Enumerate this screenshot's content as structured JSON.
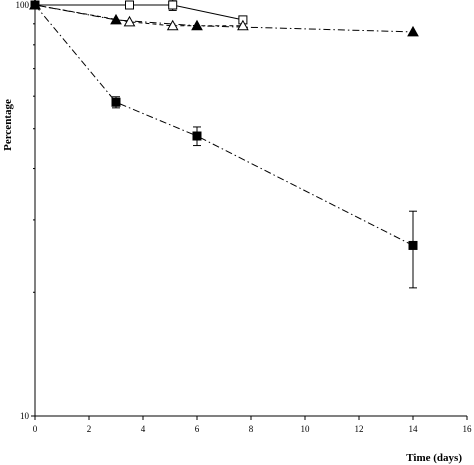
{
  "chart_data": {
    "type": "line",
    "title": "",
    "xlabel": "Time (days)",
    "ylabel": "Percentage",
    "xlim": [
      0,
      16
    ],
    "ylim": [
      10,
      100
    ],
    "y_scale": "log",
    "x_ticks": [
      0,
      2,
      4,
      6,
      8,
      10,
      12,
      14,
      16
    ],
    "y_ticks": [
      10,
      100
    ],
    "grid": false,
    "legend": "none",
    "series": [
      {
        "marker": "open-square",
        "line": "solid",
        "color": "#000000",
        "points": [
          {
            "x": 0,
            "y": 100
          },
          {
            "x": 3.5,
            "y": 100,
            "err": 0
          },
          {
            "x": 5.1,
            "y": 100,
            "err": 3
          },
          {
            "x": 7.7,
            "y": 92
          }
        ]
      },
      {
        "marker": "filled-triangle",
        "line": "dash-dot",
        "color": "#000000",
        "points": [
          {
            "x": 0,
            "y": 100
          },
          {
            "x": 3.0,
            "y": 92
          },
          {
            "x": 6.0,
            "y": 89
          },
          {
            "x": 14.0,
            "y": 86
          }
        ]
      },
      {
        "marker": "open-triangle",
        "line": "dashed",
        "color": "#000000",
        "points": [
          {
            "x": 0,
            "y": 100
          },
          {
            "x": 3.5,
            "y": 91
          },
          {
            "x": 5.1,
            "y": 89
          },
          {
            "x": 7.7,
            "y": 89
          }
        ]
      },
      {
        "marker": "filled-square",
        "line": "dash-dot",
        "color": "#000000",
        "points": [
          {
            "x": 0,
            "y": 100
          },
          {
            "x": 3.0,
            "y": 58,
            "err": 1.8
          },
          {
            "x": 6.0,
            "y": 48,
            "err": 2.5
          },
          {
            "x": 14.0,
            "y": 26,
            "err": 5.5
          }
        ]
      }
    ]
  }
}
